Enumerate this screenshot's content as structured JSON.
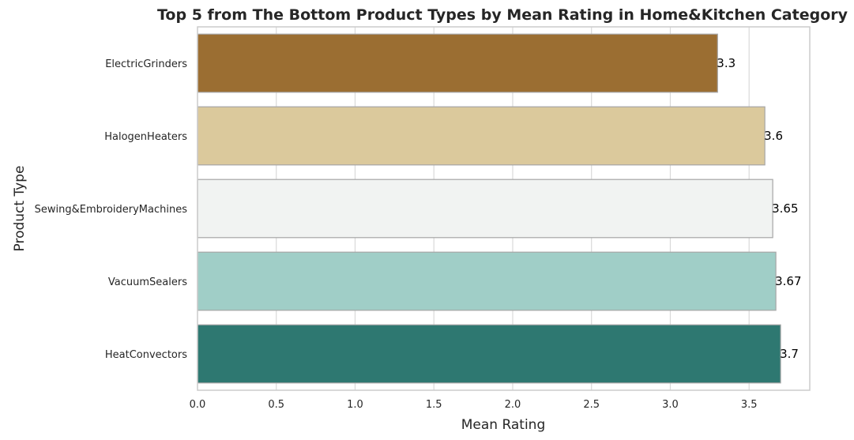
{
  "chart_data": {
    "type": "bar",
    "orientation": "horizontal",
    "title": "Top 5 from The Bottom Product Types by Mean Rating in Home&Kitchen Category",
    "xlabel": "Mean Rating",
    "ylabel": "Product Type",
    "categories": [
      "ElectricGrinders",
      "HalogenHeaters",
      "Sewing&EmbroideryMachines",
      "VacuumSealers",
      "HeatConvectors"
    ],
    "values": [
      3.3,
      3.6,
      3.65,
      3.67,
      3.7
    ],
    "data_labels": [
      "3.3",
      "3.6",
      "3.65",
      "3.67",
      "3.7"
    ],
    "colors": [
      "#9b6e32",
      "#dbc99c",
      "#f1f3f2",
      "#a0cec7",
      "#2e7871"
    ],
    "xlim": [
      0,
      3.885
    ],
    "xticks": [
      0.0,
      0.5,
      1.0,
      1.5,
      2.0,
      2.5,
      3.0,
      3.5
    ],
    "xtick_labels": [
      "0.0",
      "0.5",
      "1.0",
      "1.5",
      "2.0",
      "2.5",
      "3.0",
      "3.5"
    ],
    "grid": true,
    "legend": "none"
  }
}
